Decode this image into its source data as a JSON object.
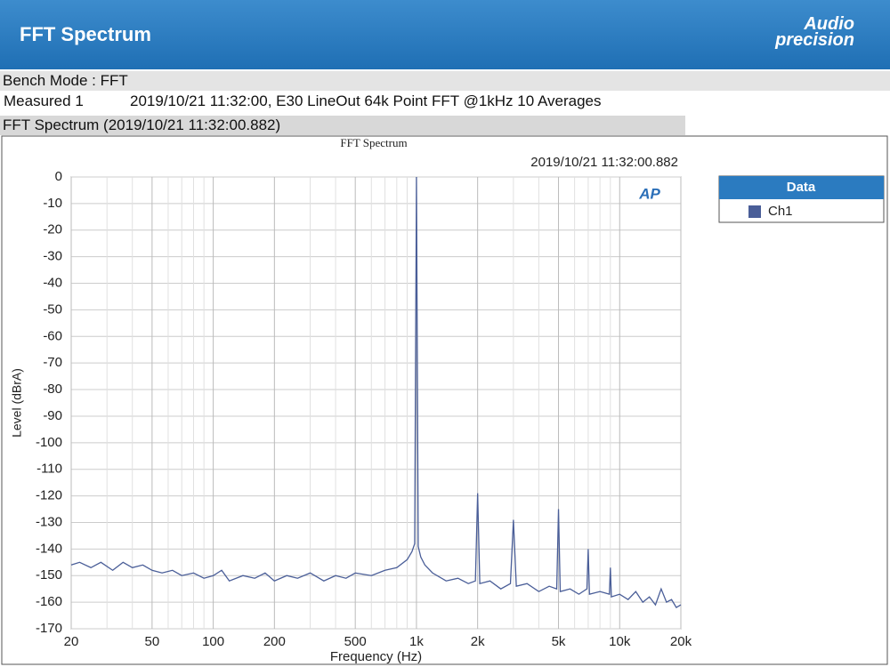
{
  "header": {
    "title": "FFT Spectrum",
    "logo_line1": "Audio",
    "logo_line2": "precision"
  },
  "info": {
    "bench_mode": "Bench Mode : FFT",
    "measured_label": "Measured 1",
    "measured_text": "2019/10/21 11:32:00, E30 LineOut 64k Point FFT @1kHz 10 Averages"
  },
  "section_title": "FFT Spectrum (2019/10/21 11:32:00.882)",
  "chart_data": {
    "type": "line",
    "title": "FFT Spectrum",
    "subtitle": "2019/10/21 11:32:00.882",
    "xlabel": "Frequency (Hz)",
    "ylabel": "Level (dBrA)",
    "plot_logo": "AP",
    "legend_title": "Data",
    "x_log": true,
    "grid": true,
    "xlim": [
      20,
      20000
    ],
    "ylim": [
      -170,
      0
    ],
    "xticks": [
      20,
      50,
      100,
      200,
      500,
      {
        "value": 1000,
        "label": "1k"
      },
      {
        "value": 2000,
        "label": "2k"
      },
      {
        "value": 5000,
        "label": "5k"
      },
      {
        "value": 10000,
        "label": "10k"
      },
      {
        "value": 20000,
        "label": "20k"
      }
    ],
    "x_minor_ticks": [
      30,
      40,
      60,
      70,
      80,
      90,
      300,
      400,
      600,
      700,
      800,
      900,
      3000,
      4000,
      6000,
      7000,
      8000,
      9000
    ],
    "yticks": [
      0,
      -10,
      -20,
      -30,
      -40,
      -50,
      -60,
      -70,
      -80,
      -90,
      -100,
      -110,
      -120,
      -130,
      -140,
      -150,
      -160,
      -170
    ],
    "x": [
      20,
      22,
      25,
      28,
      32,
      36,
      40,
      45,
      50,
      56,
      63,
      70,
      80,
      90,
      100,
      110,
      120,
      140,
      160,
      180,
      200,
      230,
      260,
      300,
      350,
      400,
      450,
      500,
      600,
      700,
      800,
      900,
      950,
      980,
      1000,
      1020,
      1050,
      1100,
      1200,
      1400,
      1600,
      1800,
      1950,
      2000,
      2050,
      2300,
      2600,
      2900,
      3000,
      3100,
      3500,
      4000,
      4500,
      4900,
      5000,
      5100,
      5700,
      6300,
      6900,
      7000,
      7100,
      8000,
      8900,
      9000,
      9100,
      10000,
      11000,
      12000,
      13000,
      14000,
      15000,
      16000,
      17000,
      18000,
      19000,
      20000
    ],
    "series": [
      {
        "name": "Ch1",
        "color": "#4a5e98",
        "values": [
          -146,
          -145,
          -147,
          -145,
          -148,
          -145,
          -147,
          -146,
          -148,
          -149,
          -148,
          -150,
          -149,
          -151,
          -150,
          -148,
          -152,
          -150,
          -151,
          -149,
          -152,
          -150,
          -151,
          -149,
          -152,
          -150,
          -151,
          -149,
          -150,
          -148,
          -147,
          -144,
          -141,
          -138,
          0,
          -139,
          -143,
          -146,
          -149,
          -152,
          -151,
          -153,
          -152,
          -119,
          -153,
          -152,
          -155,
          -153,
          -129,
          -154,
          -153,
          -156,
          -154,
          -155,
          -125,
          -156,
          -155,
          -157,
          -155,
          -140,
          -157,
          -156,
          -157,
          -147,
          -158,
          -157,
          -159,
          -156,
          -160,
          -158,
          -161,
          -155,
          -160,
          -159,
          -162,
          -161
        ]
      }
    ]
  }
}
